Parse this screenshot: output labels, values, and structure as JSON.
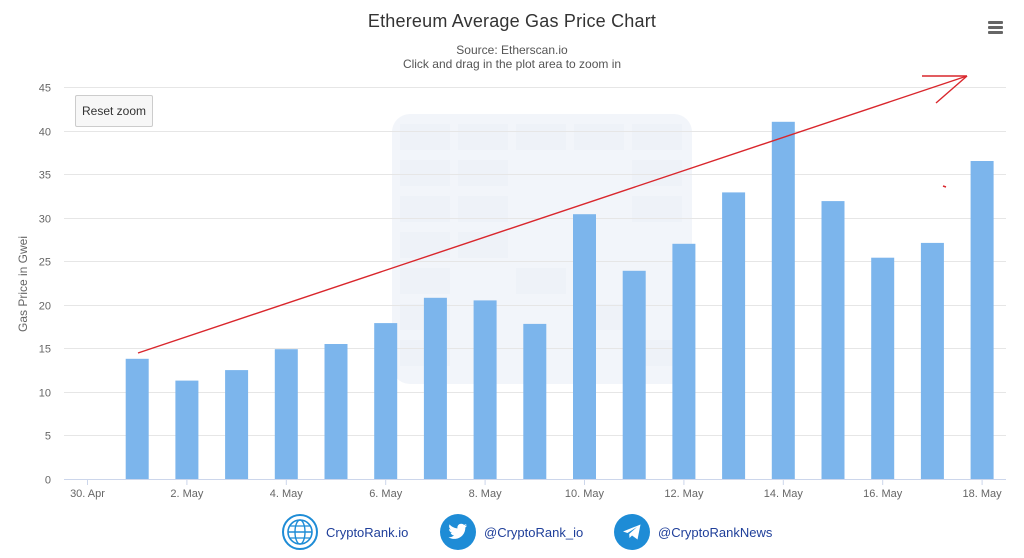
{
  "header": {
    "title": "Ethereum Average Gas Price Chart",
    "source": "Source: Etherscan.io",
    "hint": "Click and drag in the plot area to zoom in"
  },
  "toolbar": {
    "reset_zoom_label": "Reset zoom",
    "menu_icon": "hamburger-menu-icon"
  },
  "chart_data": {
    "type": "bar",
    "title": "Ethereum Average Gas Price Chart",
    "subtitle": "Source: Etherscan.io",
    "xlabel": "",
    "ylabel": "Gas Price in Gwei",
    "ylim": [
      0,
      45
    ],
    "yticks": [
      0,
      5,
      10,
      15,
      20,
      25,
      30,
      35,
      40,
      45
    ],
    "xtick_labels": [
      "30. Apr",
      "2. May",
      "4. May",
      "6. May",
      "8. May",
      "10. May",
      "12. May",
      "14. May",
      "16. May",
      "18. May"
    ],
    "categories": [
      "1. May",
      "2. May",
      "3. May",
      "4. May",
      "5. May",
      "6. May",
      "7. May",
      "8. May",
      "9. May",
      "10. May",
      "11. May",
      "12. May",
      "13. May",
      "14. May",
      "15. May",
      "16. May",
      "17. May",
      "18. May"
    ],
    "values": [
      13.8,
      11.3,
      12.5,
      14.9,
      15.5,
      17.9,
      20.8,
      20.5,
      17.8,
      30.4,
      23.9,
      27.0,
      32.9,
      41.0,
      31.9,
      25.4,
      27.1,
      36.5
    ],
    "grid": true,
    "legend": "none",
    "bar_color": "#7cb5ec",
    "annotation": "red trend arrow pointing up-right"
  },
  "footer": {
    "links": [
      {
        "label": "CryptoRank.io",
        "icon": "globe-icon"
      },
      {
        "label": "@CryptoRank_io",
        "icon": "twitter-bird-icon"
      },
      {
        "label": "@CryptoRankNews",
        "icon": "telegram-plane-icon"
      }
    ]
  },
  "colors": {
    "bar": "#7cb5ec",
    "arrow": "#d9262c",
    "grid": "#e6e6e6",
    "footer_link": "#1f3f9a",
    "footer_icon_bg": "#1e8cd6"
  }
}
